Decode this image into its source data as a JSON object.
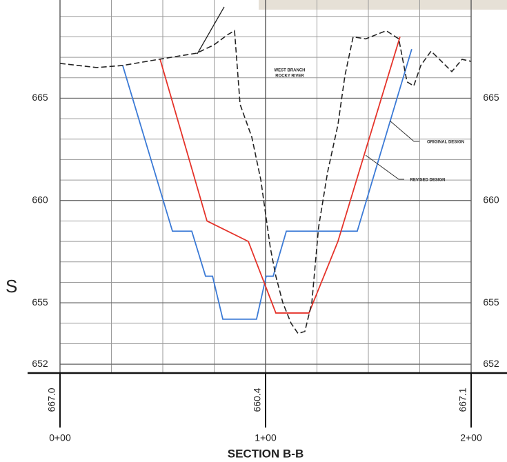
{
  "chart_data": {
    "type": "line",
    "title": "SECTION B-B",
    "xlim": [
      0,
      200
    ],
    "ylim": [
      651.6,
      669.8
    ],
    "xticks": [
      {
        "value": 0,
        "label": "0+00"
      },
      {
        "value": 100,
        "label": "1+00"
      },
      {
        "value": 200,
        "label": "2+00"
      }
    ],
    "yticks": [
      652,
      655,
      660,
      665
    ],
    "grid": true,
    "xgrid_step": 25,
    "ygrid_step": 1,
    "annotations": [
      "WEST BRANCH",
      "ROCKY RIVER",
      "S"
    ],
    "bottom_labels": [
      "667.0",
      "660.4",
      "667.1"
    ],
    "series": [
      {
        "name": "ORIGINAL DESIGN",
        "color": "#3b7ad6",
        "style": "solid",
        "x": [
          30.5,
          54.7,
          64.1,
          70.8,
          74.2,
          79.2,
          95.6,
          100.3,
          103.7,
          110.1,
          144.6,
          171.1
        ],
        "values": [
          666.6,
          658.5,
          658.5,
          656.3,
          656.3,
          654.2,
          654.2,
          656.3,
          656.3,
          658.5,
          658.5,
          667.4
        ]
      },
      {
        "name": "REVISED DESIGN",
        "color": "#e5332a",
        "style": "solid",
        "x": [
          48.7,
          71.5,
          91.6,
          105.0,
          121.1,
          135.2,
          165.4
        ],
        "values": [
          666.9,
          659.0,
          658.0,
          654.5,
          654.5,
          658.0,
          668.0
        ]
      },
      {
        "color": "#222222",
        "style": "dashed",
        "x": [
          0,
          17.8,
          30.5,
          48.0,
          66.4,
          74.8,
          81.5,
          84.9,
          87.6,
          93.3,
          97.7,
          102.3,
          105.0,
          108.4,
          112.4,
          115.8,
          119.1,
          122.5,
          125.8,
          130.2,
          135.2,
          138.6,
          142.6,
          148.7,
          153.7,
          158.7,
          164.8,
          168.8,
          172.1,
          175.5,
          180.5,
          185.6,
          190.6,
          195.6,
          200
        ],
        "values": [
          666.7,
          666.5,
          666.6,
          666.9,
          667.2,
          667.6,
          668.1,
          668.3,
          664.7,
          663.1,
          661.0,
          657.7,
          656.3,
          655.0,
          654.0,
          653.5,
          653.6,
          655.0,
          658.7,
          661.4,
          663.7,
          666.1,
          668.0,
          667.9,
          668.1,
          668.3,
          667.9,
          665.8,
          665.6,
          666.6,
          667.3,
          666.8,
          666.3,
          666.9,
          666.8
        ]
      }
    ]
  }
}
